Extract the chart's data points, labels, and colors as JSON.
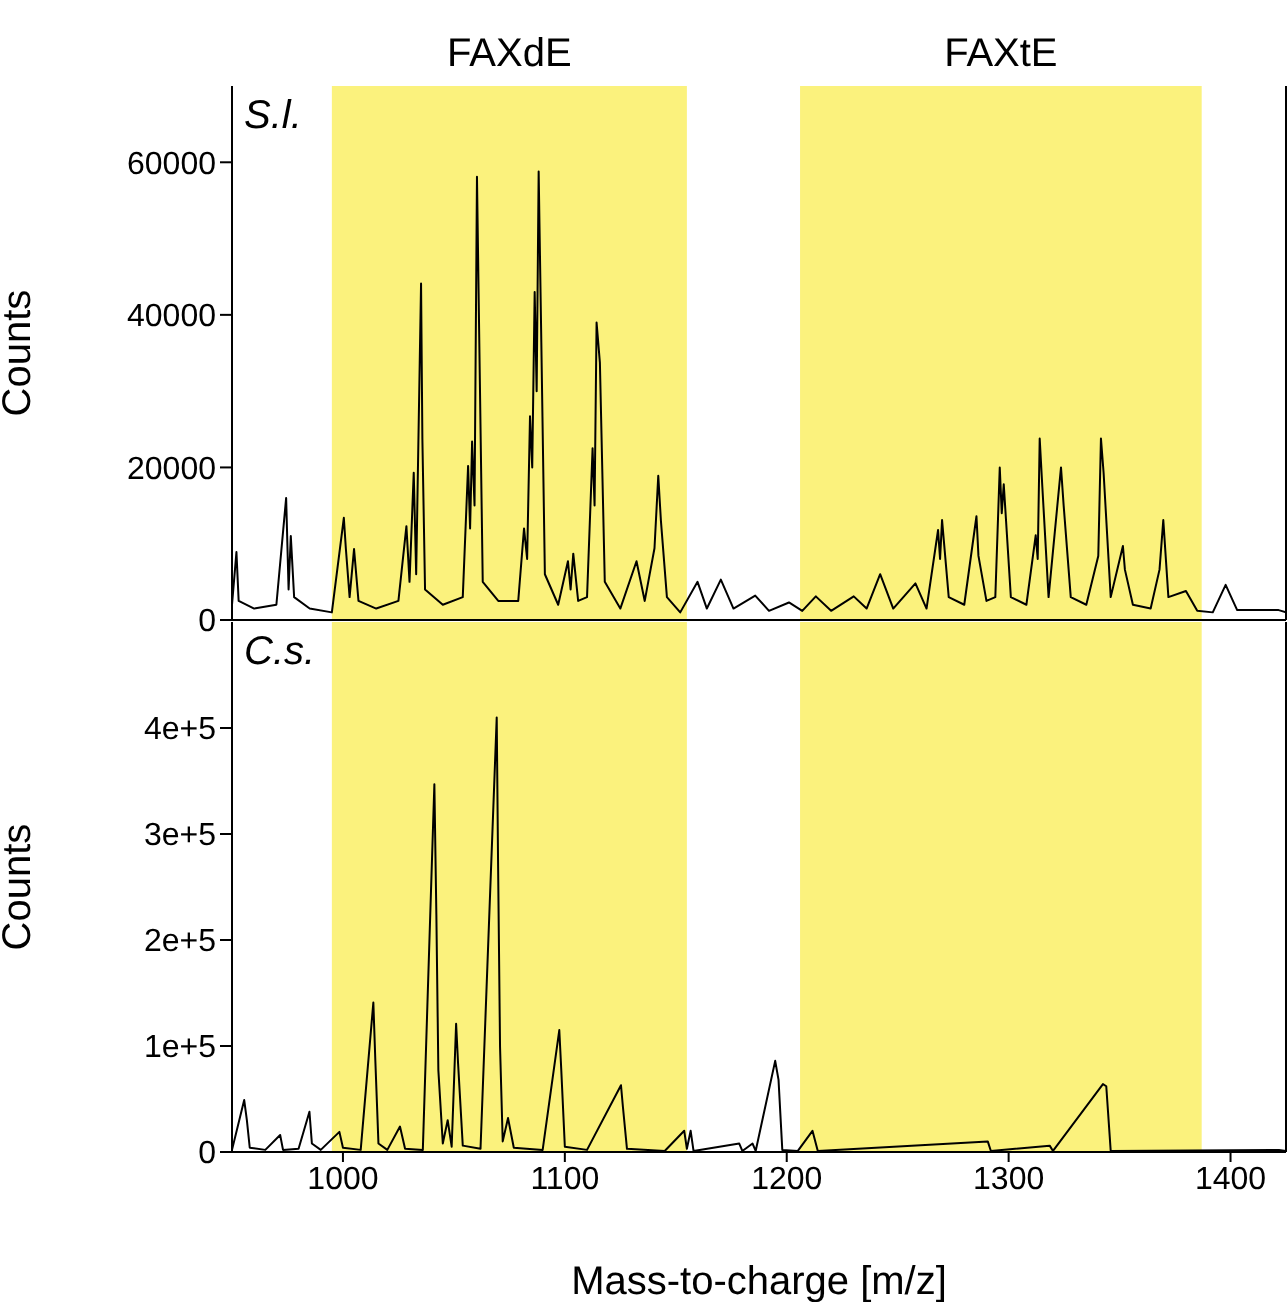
{
  "chart_data": [
    {
      "type": "line",
      "ylabel": "Counts",
      "annotations": [
        "S.l."
      ],
      "xlim": [
        950,
        1425
      ],
      "ylim": [
        0,
        70000
      ],
      "yticks": [
        0,
        20000,
        40000,
        60000
      ],
      "tick_labels": "y",
      "grid": false,
      "bands": [
        {
          "axis": "x",
          "from": 995,
          "to": 1155,
          "label": "FAXdE",
          "color": "#fbf27d"
        },
        {
          "axis": "x",
          "from": 1206,
          "to": 1387,
          "label": "FAXtE",
          "color": "#fbf27d"
        }
      ],
      "series": [
        {
          "color": "#000000",
          "x": [
            950,
            952,
            953,
            960,
            970,
            974.4,
            975.5,
            976.5,
            978,
            985,
            995,
            1000.4,
            1001.3,
            1003,
            1005,
            1007,
            1015,
            1025,
            1028.6,
            1030,
            1031.9,
            1033,
            1035.2,
            1035.8,
            1037,
            1045,
            1054,
            1056.4,
            1057.3,
            1058.2,
            1059.3,
            1060.4,
            1061.3,
            1063,
            1070,
            1079,
            1081.6,
            1083,
            1084.3,
            1085.3,
            1086.4,
            1087.3,
            1088.2,
            1089.4,
            1091,
            1097,
            1101.4,
            1102.6,
            1103.8,
            1106,
            1110,
            1112.5,
            1113.4,
            1114.3,
            1115.8,
            1118,
            1125,
            1132.3,
            1136,
            1140.4,
            1142.1,
            1143.3,
            1146,
            1152,
            1159.8,
            1164,
            1170.3,
            1176,
            1185.8,
            1192,
            1201,
            1207,
            1213.1,
            1220,
            1230.2,
            1236,
            1242.1,
            1248,
            1258,
            1263,
            1268.2,
            1269.1,
            1270,
            1273,
            1280,
            1285.5,
            1286.4,
            1290,
            1294,
            1296,
            1296.9,
            1297.8,
            1301,
            1308,
            1312.2,
            1313.1,
            1314,
            1315.2,
            1318,
            1323.6,
            1324.8,
            1328,
            1335,
            1340.4,
            1341.6,
            1342.8,
            1346,
            1351.5,
            1352.4,
            1356,
            1364,
            1368,
            1369.7,
            1372,
            1379.9,
            1385,
            1392,
            1397.8,
            1403,
            1421.7,
            1425
          ],
          "values": [
            2000,
            8900,
            2500,
            1500,
            2000,
            16000,
            4000,
            11000,
            3000,
            1500,
            1000,
            13400,
            9400,
            3000,
            9300,
            2500,
            1500,
            2500,
            12300,
            5000,
            19300,
            6000,
            44100,
            23700,
            4000,
            2000,
            3000,
            20200,
            12000,
            23400,
            15000,
            58100,
            39500,
            5000,
            2500,
            2500,
            12000,
            8000,
            26700,
            20000,
            43000,
            30000,
            58800,
            36400,
            6000,
            2000,
            7700,
            4000,
            8700,
            2500,
            3000,
            22500,
            15000,
            39000,
            33700,
            5000,
            1500,
            7700,
            2500,
            9400,
            18900,
            13000,
            3000,
            1000,
            5000,
            1500,
            5300,
            1500,
            3200,
            1200,
            2300,
            1200,
            3100,
            1200,
            3100,
            1500,
            6000,
            1500,
            4800,
            1500,
            11800,
            8000,
            13100,
            3000,
            2000,
            13600,
            8400,
            2500,
            3000,
            20000,
            14000,
            17800,
            3000,
            2000,
            11100,
            8000,
            23800,
            17400,
            3000,
            20000,
            15000,
            3000,
            2000,
            8400,
            23800,
            19300,
            3000,
            9700,
            6600,
            2000,
            1500,
            6600,
            13100,
            3000,
            3800,
            1200,
            1000,
            4600,
            1300,
            1300,
            1000
          ]
        }
      ]
    },
    {
      "type": "line",
      "ylabel": "Counts",
      "xlabel": "Mass-to-charge [m/z]",
      "annotations": [
        "C.s."
      ],
      "xlim": [
        950,
        1425
      ],
      "xticks": [
        1000,
        1100,
        1200,
        1300,
        1400
      ],
      "ylim": [
        0,
        500000
      ],
      "yticks": [
        0,
        {
          "value": 100000,
          "label": "1e+5"
        },
        {
          "value": 200000,
          "label": "2e+5"
        },
        {
          "value": 300000,
          "label": "3e+5"
        },
        {
          "value": 400000,
          "label": "4e+5"
        }
      ],
      "grid": false,
      "bands": [
        {
          "axis": "x",
          "from": 995,
          "to": 1155,
          "color": "#fbf27d"
        },
        {
          "axis": "x",
          "from": 1206,
          "to": 1387,
          "color": "#fbf27d"
        }
      ],
      "series": [
        {
          "color": "#000000",
          "x": [
            950,
            955.5,
            956.7,
            958,
            965,
            971.7,
            973,
            980,
            984.9,
            986,
            990,
            998.4,
            1000,
            1008,
            1013.7,
            1014.6,
            1016,
            1020,
            1025.7,
            1028,
            1036,
            1041.2,
            1042.1,
            1043,
            1045,
            1047.2,
            1049,
            1051,
            1051.9,
            1054,
            1062,
            1069.3,
            1069.9,
            1070.8,
            1072,
            1074.4,
            1077,
            1090,
            1097.5,
            1098.4,
            1100,
            1110,
            1125.3,
            1126.2,
            1128,
            1145,
            1153.8,
            1155,
            1156.7,
            1158,
            1178.6,
            1180,
            1184.6,
            1186,
            1194.8,
            1196.3,
            1198,
            1205,
            1211.6,
            1214,
            1290.6,
            1292,
            1318.5,
            1320,
            1342.5,
            1344,
            1346,
            1421.8,
            1425
          ],
          "values": [
            2000,
            49000,
            30000,
            4000,
            2000,
            16000,
            2000,
            3000,
            38000,
            8000,
            2000,
            19000,
            4000,
            2000,
            141000,
            86000,
            8000,
            2000,
            24000,
            3000,
            2000,
            347000,
            224000,
            77000,
            8000,
            30000,
            5000,
            121000,
            83000,
            6000,
            3000,
            410000,
            274000,
            99000,
            10000,
            32000,
            4000,
            2000,
            115000,
            77000,
            5000,
            2000,
            63000,
            42000,
            3000,
            1000,
            20000,
            3000,
            20000,
            1000,
            8000,
            1000,
            8000,
            1000,
            86000,
            68000,
            2000,
            1000,
            20000,
            1000,
            10000,
            1000,
            6000,
            1000,
            64000,
            62000,
            1000,
            2000,
            1000
          ]
        }
      ]
    }
  ]
}
